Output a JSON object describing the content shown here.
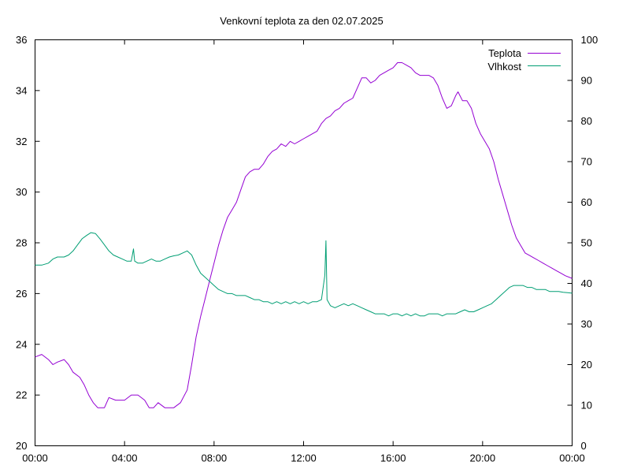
{
  "chart_data": {
    "type": "line",
    "title": "Venkovní teplota za den 02.07.2025",
    "xlabel": "",
    "ylabel": "",
    "y2label": "",
    "x_range_hours": [
      0,
      24
    ],
    "x_tick_hours": [
      0,
      4,
      8,
      12,
      16,
      20,
      24
    ],
    "x_tick_labels": [
      "00:00",
      "04:00",
      "08:00",
      "12:00",
      "16:00",
      "20:00",
      "00:00"
    ],
    "ylim": [
      20,
      36
    ],
    "y_ticks": [
      20,
      22,
      24,
      26,
      28,
      30,
      32,
      34,
      36
    ],
    "y2lim": [
      0,
      100
    ],
    "y2_ticks": [
      0,
      10,
      20,
      30,
      40,
      50,
      60,
      70,
      80,
      90,
      100
    ],
    "grid": false,
    "legend_position": "top-right",
    "series": [
      {
        "name": "Teplota",
        "axis": "left",
        "color": "#9400d3",
        "points": [
          [
            0.0,
            23.5
          ],
          [
            0.3,
            23.6
          ],
          [
            0.6,
            23.4
          ],
          [
            0.8,
            23.2
          ],
          [
            1.0,
            23.3
          ],
          [
            1.3,
            23.4
          ],
          [
            1.5,
            23.2
          ],
          [
            1.7,
            22.9
          ],
          [
            2.0,
            22.7
          ],
          [
            2.2,
            22.4
          ],
          [
            2.4,
            22.0
          ],
          [
            2.6,
            21.7
          ],
          [
            2.8,
            21.5
          ],
          [
            3.1,
            21.5
          ],
          [
            3.3,
            21.9
          ],
          [
            3.6,
            21.8
          ],
          [
            4.0,
            21.8
          ],
          [
            4.3,
            22.0
          ],
          [
            4.6,
            22.0
          ],
          [
            4.9,
            21.8
          ],
          [
            5.1,
            21.5
          ],
          [
            5.3,
            21.5
          ],
          [
            5.5,
            21.7
          ],
          [
            5.8,
            21.5
          ],
          [
            6.2,
            21.5
          ],
          [
            6.5,
            21.7
          ],
          [
            6.8,
            22.2
          ],
          [
            7.0,
            23.2
          ],
          [
            7.2,
            24.3
          ],
          [
            7.4,
            25.1
          ],
          [
            7.6,
            25.8
          ],
          [
            7.8,
            26.5
          ],
          [
            8.0,
            27.2
          ],
          [
            8.2,
            27.9
          ],
          [
            8.4,
            28.5
          ],
          [
            8.6,
            29.0
          ],
          [
            8.8,
            29.3
          ],
          [
            9.0,
            29.6
          ],
          [
            9.2,
            30.1
          ],
          [
            9.4,
            30.6
          ],
          [
            9.6,
            30.8
          ],
          [
            9.8,
            30.9
          ],
          [
            10.0,
            30.9
          ],
          [
            10.2,
            31.1
          ],
          [
            10.4,
            31.4
          ],
          [
            10.6,
            31.6
          ],
          [
            10.8,
            31.7
          ],
          [
            11.0,
            31.9
          ],
          [
            11.2,
            31.8
          ],
          [
            11.4,
            32.0
          ],
          [
            11.6,
            31.9
          ],
          [
            11.8,
            32.0
          ],
          [
            12.0,
            32.1
          ],
          [
            12.2,
            32.2
          ],
          [
            12.4,
            32.3
          ],
          [
            12.6,
            32.4
          ],
          [
            12.8,
            32.7
          ],
          [
            13.0,
            32.9
          ],
          [
            13.2,
            33.0
          ],
          [
            13.4,
            33.2
          ],
          [
            13.6,
            33.3
          ],
          [
            13.8,
            33.5
          ],
          [
            14.0,
            33.6
          ],
          [
            14.2,
            33.7
          ],
          [
            14.4,
            34.1
          ],
          [
            14.6,
            34.5
          ],
          [
            14.8,
            34.5
          ],
          [
            15.0,
            34.3
          ],
          [
            15.2,
            34.4
          ],
          [
            15.4,
            34.6
          ],
          [
            15.6,
            34.7
          ],
          [
            15.8,
            34.8
          ],
          [
            16.0,
            34.9
          ],
          [
            16.2,
            35.1
          ],
          [
            16.4,
            35.1
          ],
          [
            16.6,
            35.0
          ],
          [
            16.8,
            34.9
          ],
          [
            17.0,
            34.7
          ],
          [
            17.2,
            34.6
          ],
          [
            17.4,
            34.6
          ],
          [
            17.6,
            34.6
          ],
          [
            17.8,
            34.5
          ],
          [
            18.0,
            34.2
          ],
          [
            18.2,
            33.7
          ],
          [
            18.4,
            33.3
          ],
          [
            18.6,
            33.4
          ],
          [
            18.8,
            33.8
          ],
          [
            18.9,
            33.95
          ],
          [
            19.1,
            33.6
          ],
          [
            19.3,
            33.6
          ],
          [
            19.5,
            33.3
          ],
          [
            19.7,
            32.7
          ],
          [
            19.9,
            32.3
          ],
          [
            20.1,
            32.0
          ],
          [
            20.3,
            31.7
          ],
          [
            20.5,
            31.2
          ],
          [
            20.7,
            30.5
          ],
          [
            20.9,
            29.9
          ],
          [
            21.1,
            29.3
          ],
          [
            21.3,
            28.7
          ],
          [
            21.5,
            28.2
          ],
          [
            21.7,
            27.9
          ],
          [
            21.9,
            27.6
          ],
          [
            22.1,
            27.5
          ],
          [
            22.3,
            27.4
          ],
          [
            22.5,
            27.3
          ],
          [
            22.7,
            27.2
          ],
          [
            22.9,
            27.1
          ],
          [
            23.1,
            27.0
          ],
          [
            23.3,
            26.9
          ],
          [
            23.5,
            26.8
          ],
          [
            23.7,
            26.7
          ],
          [
            24.0,
            26.6
          ]
        ]
      },
      {
        "name": "Vlhkost",
        "axis": "right",
        "color": "#009e73",
        "points": [
          [
            0.0,
            44.5
          ],
          [
            0.3,
            44.5
          ],
          [
            0.6,
            45.0
          ],
          [
            0.8,
            46.0
          ],
          [
            1.0,
            46.5
          ],
          [
            1.3,
            46.5
          ],
          [
            1.5,
            47.0
          ],
          [
            1.7,
            48.0
          ],
          [
            1.9,
            49.5
          ],
          [
            2.1,
            51.0
          ],
          [
            2.3,
            51.8
          ],
          [
            2.5,
            52.5
          ],
          [
            2.7,
            52.3
          ],
          [
            2.9,
            51.0
          ],
          [
            3.1,
            49.5
          ],
          [
            3.3,
            48.0
          ],
          [
            3.5,
            47.0
          ],
          [
            3.7,
            46.5
          ],
          [
            3.9,
            46.0
          ],
          [
            4.1,
            45.5
          ],
          [
            4.3,
            45.5
          ],
          [
            4.4,
            48.5
          ],
          [
            4.45,
            45.5
          ],
          [
            4.6,
            45.0
          ],
          [
            4.8,
            45.0
          ],
          [
            5.0,
            45.5
          ],
          [
            5.2,
            46.0
          ],
          [
            5.4,
            45.5
          ],
          [
            5.6,
            45.5
          ],
          [
            5.8,
            46.0
          ],
          [
            6.0,
            46.5
          ],
          [
            6.2,
            46.8
          ],
          [
            6.4,
            47.0
          ],
          [
            6.6,
            47.5
          ],
          [
            6.8,
            48.0
          ],
          [
            7.0,
            47.0
          ],
          [
            7.2,
            44.5
          ],
          [
            7.4,
            42.5
          ],
          [
            7.6,
            41.5
          ],
          [
            7.8,
            40.5
          ],
          [
            8.0,
            39.5
          ],
          [
            8.2,
            38.5
          ],
          [
            8.4,
            38.0
          ],
          [
            8.6,
            37.5
          ],
          [
            8.8,
            37.5
          ],
          [
            9.0,
            37.0
          ],
          [
            9.2,
            37.0
          ],
          [
            9.4,
            37.0
          ],
          [
            9.6,
            36.5
          ],
          [
            9.8,
            36.0
          ],
          [
            10.0,
            36.0
          ],
          [
            10.2,
            35.5
          ],
          [
            10.4,
            35.5
          ],
          [
            10.6,
            35.0
          ],
          [
            10.8,
            35.5
          ],
          [
            11.0,
            35.0
          ],
          [
            11.2,
            35.5
          ],
          [
            11.4,
            35.0
          ],
          [
            11.6,
            35.5
          ],
          [
            11.8,
            35.0
          ],
          [
            12.0,
            35.5
          ],
          [
            12.2,
            35.0
          ],
          [
            12.4,
            35.5
          ],
          [
            12.6,
            35.5
          ],
          [
            12.8,
            36.0
          ],
          [
            12.95,
            42.0
          ],
          [
            13.0,
            50.5
          ],
          [
            13.05,
            36.0
          ],
          [
            13.2,
            34.5
          ],
          [
            13.4,
            34.0
          ],
          [
            13.6,
            34.5
          ],
          [
            13.8,
            35.0
          ],
          [
            14.0,
            34.5
          ],
          [
            14.2,
            35.0
          ],
          [
            14.4,
            34.5
          ],
          [
            14.6,
            34.0
          ],
          [
            14.8,
            33.5
          ],
          [
            15.0,
            33.0
          ],
          [
            15.2,
            32.5
          ],
          [
            15.4,
            32.5
          ],
          [
            15.6,
            32.5
          ],
          [
            15.8,
            32.0
          ],
          [
            16.0,
            32.5
          ],
          [
            16.2,
            32.5
          ],
          [
            16.4,
            32.0
          ],
          [
            16.6,
            32.5
          ],
          [
            16.8,
            32.0
          ],
          [
            17.0,
            32.5
          ],
          [
            17.2,
            32.0
          ],
          [
            17.4,
            32.0
          ],
          [
            17.6,
            32.5
          ],
          [
            17.8,
            32.5
          ],
          [
            18.0,
            32.5
          ],
          [
            18.2,
            32.0
          ],
          [
            18.4,
            32.5
          ],
          [
            18.6,
            32.5
          ],
          [
            18.8,
            32.5
          ],
          [
            19.0,
            33.0
          ],
          [
            19.2,
            33.5
          ],
          [
            19.4,
            33.0
          ],
          [
            19.6,
            33.0
          ],
          [
            19.8,
            33.5
          ],
          [
            20.0,
            34.0
          ],
          [
            20.2,
            34.5
          ],
          [
            20.4,
            35.0
          ],
          [
            20.6,
            36.0
          ],
          [
            20.8,
            37.0
          ],
          [
            21.0,
            38.0
          ],
          [
            21.2,
            39.0
          ],
          [
            21.4,
            39.5
          ],
          [
            21.6,
            39.5
          ],
          [
            21.8,
            39.5
          ],
          [
            22.0,
            39.0
          ],
          [
            22.2,
            39.0
          ],
          [
            22.4,
            38.5
          ],
          [
            22.6,
            38.5
          ],
          [
            22.8,
            38.5
          ],
          [
            23.0,
            38.0
          ],
          [
            23.2,
            38.0
          ],
          [
            23.4,
            38.0
          ],
          [
            23.6,
            37.8
          ],
          [
            23.8,
            37.7
          ],
          [
            24.0,
            37.6
          ]
        ]
      }
    ]
  }
}
